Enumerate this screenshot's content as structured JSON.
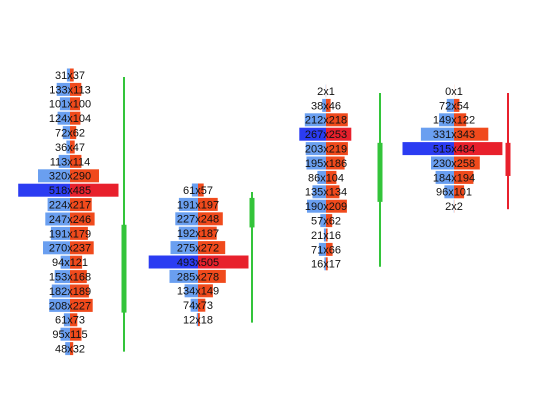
{
  "chart_data": {
    "type": "footprint",
    "bid_color": "#6a9ff0",
    "ask_color": "#f04a1c",
    "poc_bid_color": "#2b3cf2",
    "poc_ask_color": "#e8202c",
    "candles": [
      {
        "bids": [
          31,
          133,
          101,
          124,
          72,
          36,
          113,
          320,
          518,
          224,
          247,
          191,
          270,
          94,
          153,
          182,
          208,
          61,
          95,
          48
        ],
        "asks": [
          37,
          113,
          100,
          104,
          62,
          47,
          114,
          290,
          485,
          217,
          246,
          179,
          237,
          121,
          168,
          189,
          227,
          73,
          115,
          32
        ],
        "value_labels": [
          "31x37",
          "133x113",
          "101x100",
          "124x104",
          "72x62",
          "36x47",
          "113x114",
          "320x290",
          "518x485",
          "224x217",
          "247x246",
          "191x179",
          "270x237",
          "94x121",
          "153x168",
          "182x189",
          "208x227",
          "61x73",
          "95x115",
          "48x32"
        ],
        "open": 16.5,
        "close": 10.4,
        "color": "#33c43a"
      },
      {
        "bids": [
          61,
          191,
          227,
          192,
          275,
          493,
          285,
          134,
          74,
          12
        ],
        "asks": [
          57,
          197,
          248,
          187,
          272,
          505,
          278,
          149,
          73,
          18
        ],
        "value_labels": [
          "61x57",
          "191x197",
          "227x248",
          "192x187",
          "275x272",
          "493x505",
          "285x278",
          "134x149",
          "74x73",
          "12x18"
        ],
        "open": 2.6,
        "close": 0.55,
        "color": "#33c43a"
      },
      {
        "bids": [
          2,
          38,
          212,
          267,
          203,
          195,
          86,
          135,
          190,
          57,
          21,
          71,
          16
        ],
        "asks": [
          1,
          46,
          218,
          253,
          219,
          186,
          104,
          134,
          209,
          62,
          16,
          66,
          17
        ],
        "value_labels": [
          "2x1",
          "38x46",
          "212x218",
          "267x253",
          "203x219",
          "195x186",
          "86x104",
          "135x134",
          "190x209",
          "57x62",
          "21x16",
          "71x66",
          "16x17"
        ],
        "open": 7.7,
        "close": 3.6,
        "color": "#33c43a"
      },
      {
        "bids": [
          0,
          72,
          149,
          331,
          515,
          230,
          184,
          96,
          2
        ],
        "asks": [
          1,
          54,
          122,
          343,
          484,
          258,
          194,
          101,
          2
        ],
        "value_labels": [
          "0x1",
          "72x54",
          "149x122",
          "331x343",
          "515x484",
          "230x258",
          "184x194",
          "96x101",
          "2x2"
        ],
        "open": 3.6,
        "close": 5.9,
        "color": "#e8202c"
      }
    ]
  }
}
